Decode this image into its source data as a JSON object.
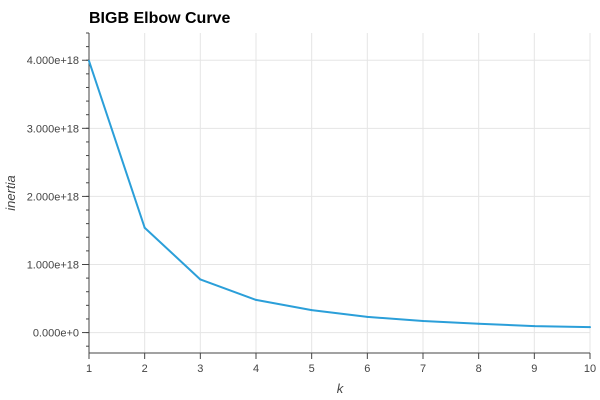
{
  "chart_data": {
    "type": "line",
    "title": "BIGB Elbow Curve",
    "xlabel": "k",
    "ylabel": "inertia",
    "x": [
      1,
      2,
      3,
      4,
      5,
      6,
      7,
      8,
      9,
      10
    ],
    "xlim": [
      1,
      10
    ],
    "x_ticks": [
      "1",
      "2",
      "3",
      "4",
      "5",
      "6",
      "7",
      "8",
      "9",
      "10"
    ],
    "ylim": [
      -3e+17,
      4.4e+18
    ],
    "y_tick_values": [
      0,
      1e+18,
      2e+18,
      3e+18,
      4e+18
    ],
    "y_ticks": [
      "0.000e+0",
      "1.000e+18",
      "2.000e+18",
      "3.000e+18",
      "4.000e+18"
    ],
    "series": [
      {
        "values": [
          3.99e+18,
          1.54e+18,
          7.8e+17,
          4.8e+17,
          3.3e+17,
          2.3e+17,
          1.7e+17,
          1.3e+17,
          9.5e+16,
          8e+16
        ],
        "color": "#2b9fd9"
      }
    ],
    "grid": true,
    "grid_color": "#e5e5e5",
    "axis_color": "#444444"
  }
}
